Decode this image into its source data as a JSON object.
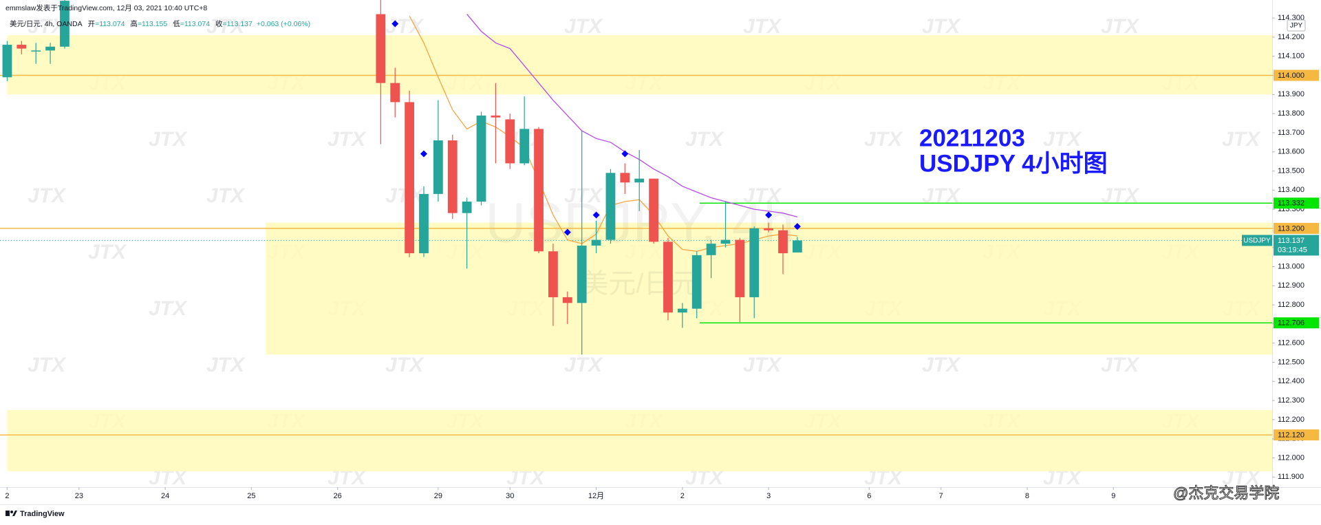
{
  "chart_data": {
    "type": "candlestick",
    "header": {
      "author_line": "emmslaw发表于TradingView.com, 12月 03, 2021 10:40 UTC+8",
      "symbol": "美元/日元, 4h, OANDA",
      "ohlc": [
        {
          "name": "开",
          "value": "=113.074"
        },
        {
          "name": "高",
          "value": "=113.155"
        },
        {
          "name": "低",
          "value": "=113.074"
        },
        {
          "name": "收",
          "value": "=113.137"
        }
      ],
      "change": "+0.063 (+0.06%)"
    },
    "annotation": [
      "20211203",
      "USDJPY 4小时图"
    ],
    "watermark": {
      "symbol": "USDJPY, 4h",
      "subtitle": "美元/日元",
      "logo": "JTX"
    },
    "footer": "TradingView",
    "credit": "@杰克交易学院",
    "axis_unit": "JPY",
    "colors": {
      "up": "#26a69a",
      "down": "#ef5350"
    },
    "x": [
      -26,
      -25,
      -24,
      -23,
      -22,
      0,
      1,
      2,
      3,
      4,
      5,
      6,
      7,
      8,
      9,
      10,
      11,
      12,
      13,
      14,
      15,
      16,
      17,
      18,
      19,
      20,
      21,
      22,
      23,
      24,
      25,
      26,
      27,
      28,
      29
    ],
    "open": [
      113.99,
      114.16,
      114.125,
      114.13,
      114.15,
      114.32,
      113.96,
      113.86,
      113.07,
      113.38,
      113.66,
      113.28,
      113.34,
      113.79,
      113.77,
      113.54,
      113.72,
      113.08,
      112.84,
      112.81,
      113.11,
      113.14,
      113.49,
      113.44,
      113.46,
      113.13,
      112.76,
      112.78,
      113.06,
      113.12,
      113.14,
      112.84,
      113.2,
      113.19,
      113.074
    ],
    "high": [
      114.18,
      114.18,
      114.17,
      114.17,
      114.45,
      114.4,
      114.04,
      113.92,
      113.42,
      113.87,
      113.69,
      113.36,
      113.81,
      113.96,
      113.8,
      113.89,
      113.73,
      113.12,
      112.87,
      113.71,
      113.24,
      113.51,
      113.54,
      113.61,
      113.46,
      113.15,
      112.81,
      113.08,
      113.14,
      113.34,
      113.15,
      113.21,
      113.23,
      113.22,
      113.155
    ],
    "low": [
      113.97,
      114.11,
      114.06,
      114.06,
      114.14,
      113.64,
      113.78,
      113.05,
      113.05,
      113.34,
      113.25,
      112.99,
      113.32,
      113.54,
      113.51,
      113.53,
      113.07,
      112.69,
      112.7,
      112.54,
      113.07,
      113.12,
      113.38,
      113.29,
      113.12,
      112.72,
      112.68,
      112.73,
      112.94,
      113.1,
      112.71,
      112.73,
      113.18,
      112.96,
      113.074
    ],
    "close": [
      114.16,
      114.14,
      114.13,
      114.15,
      114.39,
      113.96,
      113.86,
      113.07,
      113.38,
      113.66,
      113.28,
      113.34,
      113.79,
      113.78,
      113.54,
      113.72,
      113.08,
      112.84,
      112.81,
      113.11,
      113.14,
      113.49,
      113.44,
      113.46,
      113.13,
      112.76,
      112.78,
      113.06,
      113.12,
      113.14,
      112.84,
      113.2,
      113.19,
      113.07,
      113.137
    ],
    "lines": [
      {
        "color": "#f7a440",
        "x": [
          2,
          3,
          4,
          5,
          6,
          7,
          8,
          9,
          10,
          11,
          12,
          13,
          14,
          15,
          16,
          17,
          18,
          19,
          20,
          21,
          22,
          23,
          24,
          25,
          26,
          27,
          28,
          29
        ],
        "values": [
          114.31,
          114.17,
          113.99,
          113.82,
          113.72,
          113.76,
          113.73,
          113.68,
          113.62,
          113.45,
          113.27,
          113.14,
          113.12,
          113.17,
          113.32,
          113.34,
          113.35,
          113.27,
          113.16,
          113.09,
          113.08,
          113.1,
          113.11,
          113.12,
          113.14,
          113.16,
          113.17,
          113.16
        ]
      },
      {
        "color": "#b44ce8",
        "x": [
          6,
          7,
          8,
          9,
          10,
          11,
          12,
          13,
          14,
          15,
          16,
          17,
          18,
          19,
          20,
          21,
          22,
          23,
          24,
          25,
          26,
          27,
          28,
          29
        ],
        "values": [
          114.32,
          114.23,
          114.17,
          114.14,
          114.05,
          113.96,
          113.87,
          113.79,
          113.71,
          113.67,
          113.65,
          113.6,
          113.56,
          113.51,
          113.47,
          113.42,
          113.39,
          113.36,
          113.34,
          113.32,
          113.3,
          113.29,
          113.28,
          113.26
        ]
      }
    ],
    "markers": {
      "color": "#0000ff",
      "x": [
        1,
        3,
        13,
        15,
        17,
        27,
        29
      ],
      "values": [
        114.27,
        113.59,
        113.18,
        113.27,
        113.59,
        113.27,
        113.21
      ]
    },
    "zones": [
      {
        "top": 114.21,
        "bottom": 113.9,
        "x_start": -26,
        "color": "#fffab8"
      },
      {
        "top": 113.23,
        "bottom": 112.54,
        "x_start": -8,
        "color": "#fffab8"
      },
      {
        "top": 112.25,
        "bottom": 111.93,
        "x_start": -26,
        "color": "#fffab8"
      }
    ],
    "price_lines": [
      {
        "value": 114.0,
        "label": "114.000",
        "color": "#f5b942"
      },
      {
        "value": 113.332,
        "label": "113.332",
        "color": "#00e600",
        "x_start": 22.2
      },
      {
        "value": 113.2,
        "label": "113.200",
        "color": "#f5b942"
      },
      {
        "value": 112.706,
        "label": "112.706",
        "color": "#00e600",
        "x_start": 22.2
      },
      {
        "value": 112.12,
        "label": "112.120",
        "color": "#f5b942"
      }
    ],
    "current_price": {
      "value": 113.137,
      "label": "113.137",
      "countdown": "03:19:45",
      "name": "USDJPY",
      "color": "#26a69a"
    },
    "xlim": [
      -26.5,
      62.05
    ],
    "ylim": [
      111.847,
      114.394
    ],
    "xticks": [
      {
        "value": -26,
        "label": "2"
      },
      {
        "value": -21,
        "label": "23"
      },
      {
        "value": -15,
        "label": "24"
      },
      {
        "value": -9,
        "label": "25"
      },
      {
        "value": -3,
        "label": "26"
      },
      {
        "value": 4,
        "label": "29"
      },
      {
        "value": 9,
        "label": "30"
      },
      {
        "value": 15,
        "label": "12月"
      },
      {
        "value": 21,
        "label": "2"
      },
      {
        "value": 27,
        "label": "3"
      },
      {
        "value": 34,
        "label": "6"
      },
      {
        "value": 39,
        "label": "7"
      },
      {
        "value": 45,
        "label": "8"
      },
      {
        "value": 51,
        "label": "9"
      }
    ],
    "yticks": [
      {
        "value": 111.9,
        "label": "111.900"
      },
      {
        "value": 112.0,
        "label": "112.000"
      },
      {
        "value": 112.1,
        "label": "112.100"
      },
      {
        "value": 112.2,
        "label": "112.200"
      },
      {
        "value": 112.3,
        "label": "112.300"
      },
      {
        "value": 112.4,
        "label": "112.400"
      },
      {
        "value": 112.5,
        "label": "112.500"
      },
      {
        "value": 112.6,
        "label": "112.600"
      },
      {
        "value": 112.7,
        "label": "112.700"
      },
      {
        "value": 112.8,
        "label": "112.800"
      },
      {
        "value": 112.9,
        "label": "112.900"
      },
      {
        "value": 113.0,
        "label": "113.000"
      },
      {
        "value": 113.1,
        "label": "113.100"
      },
      {
        "value": 113.2,
        "label": "113.200"
      },
      {
        "value": 113.3,
        "label": "113.300"
      },
      {
        "value": 113.4,
        "label": "113.400"
      },
      {
        "value": 113.5,
        "label": "113.500"
      },
      {
        "value": 113.6,
        "label": "113.600"
      },
      {
        "value": 113.7,
        "label": "113.700"
      },
      {
        "value": 113.8,
        "label": "113.800"
      },
      {
        "value": 113.9,
        "label": "113.900"
      },
      {
        "value": 114.0,
        "label": "114.000"
      },
      {
        "value": 114.1,
        "label": "114.100"
      },
      {
        "value": 114.2,
        "label": "114.200"
      },
      {
        "value": 114.3,
        "label": "114.300"
      }
    ]
  }
}
